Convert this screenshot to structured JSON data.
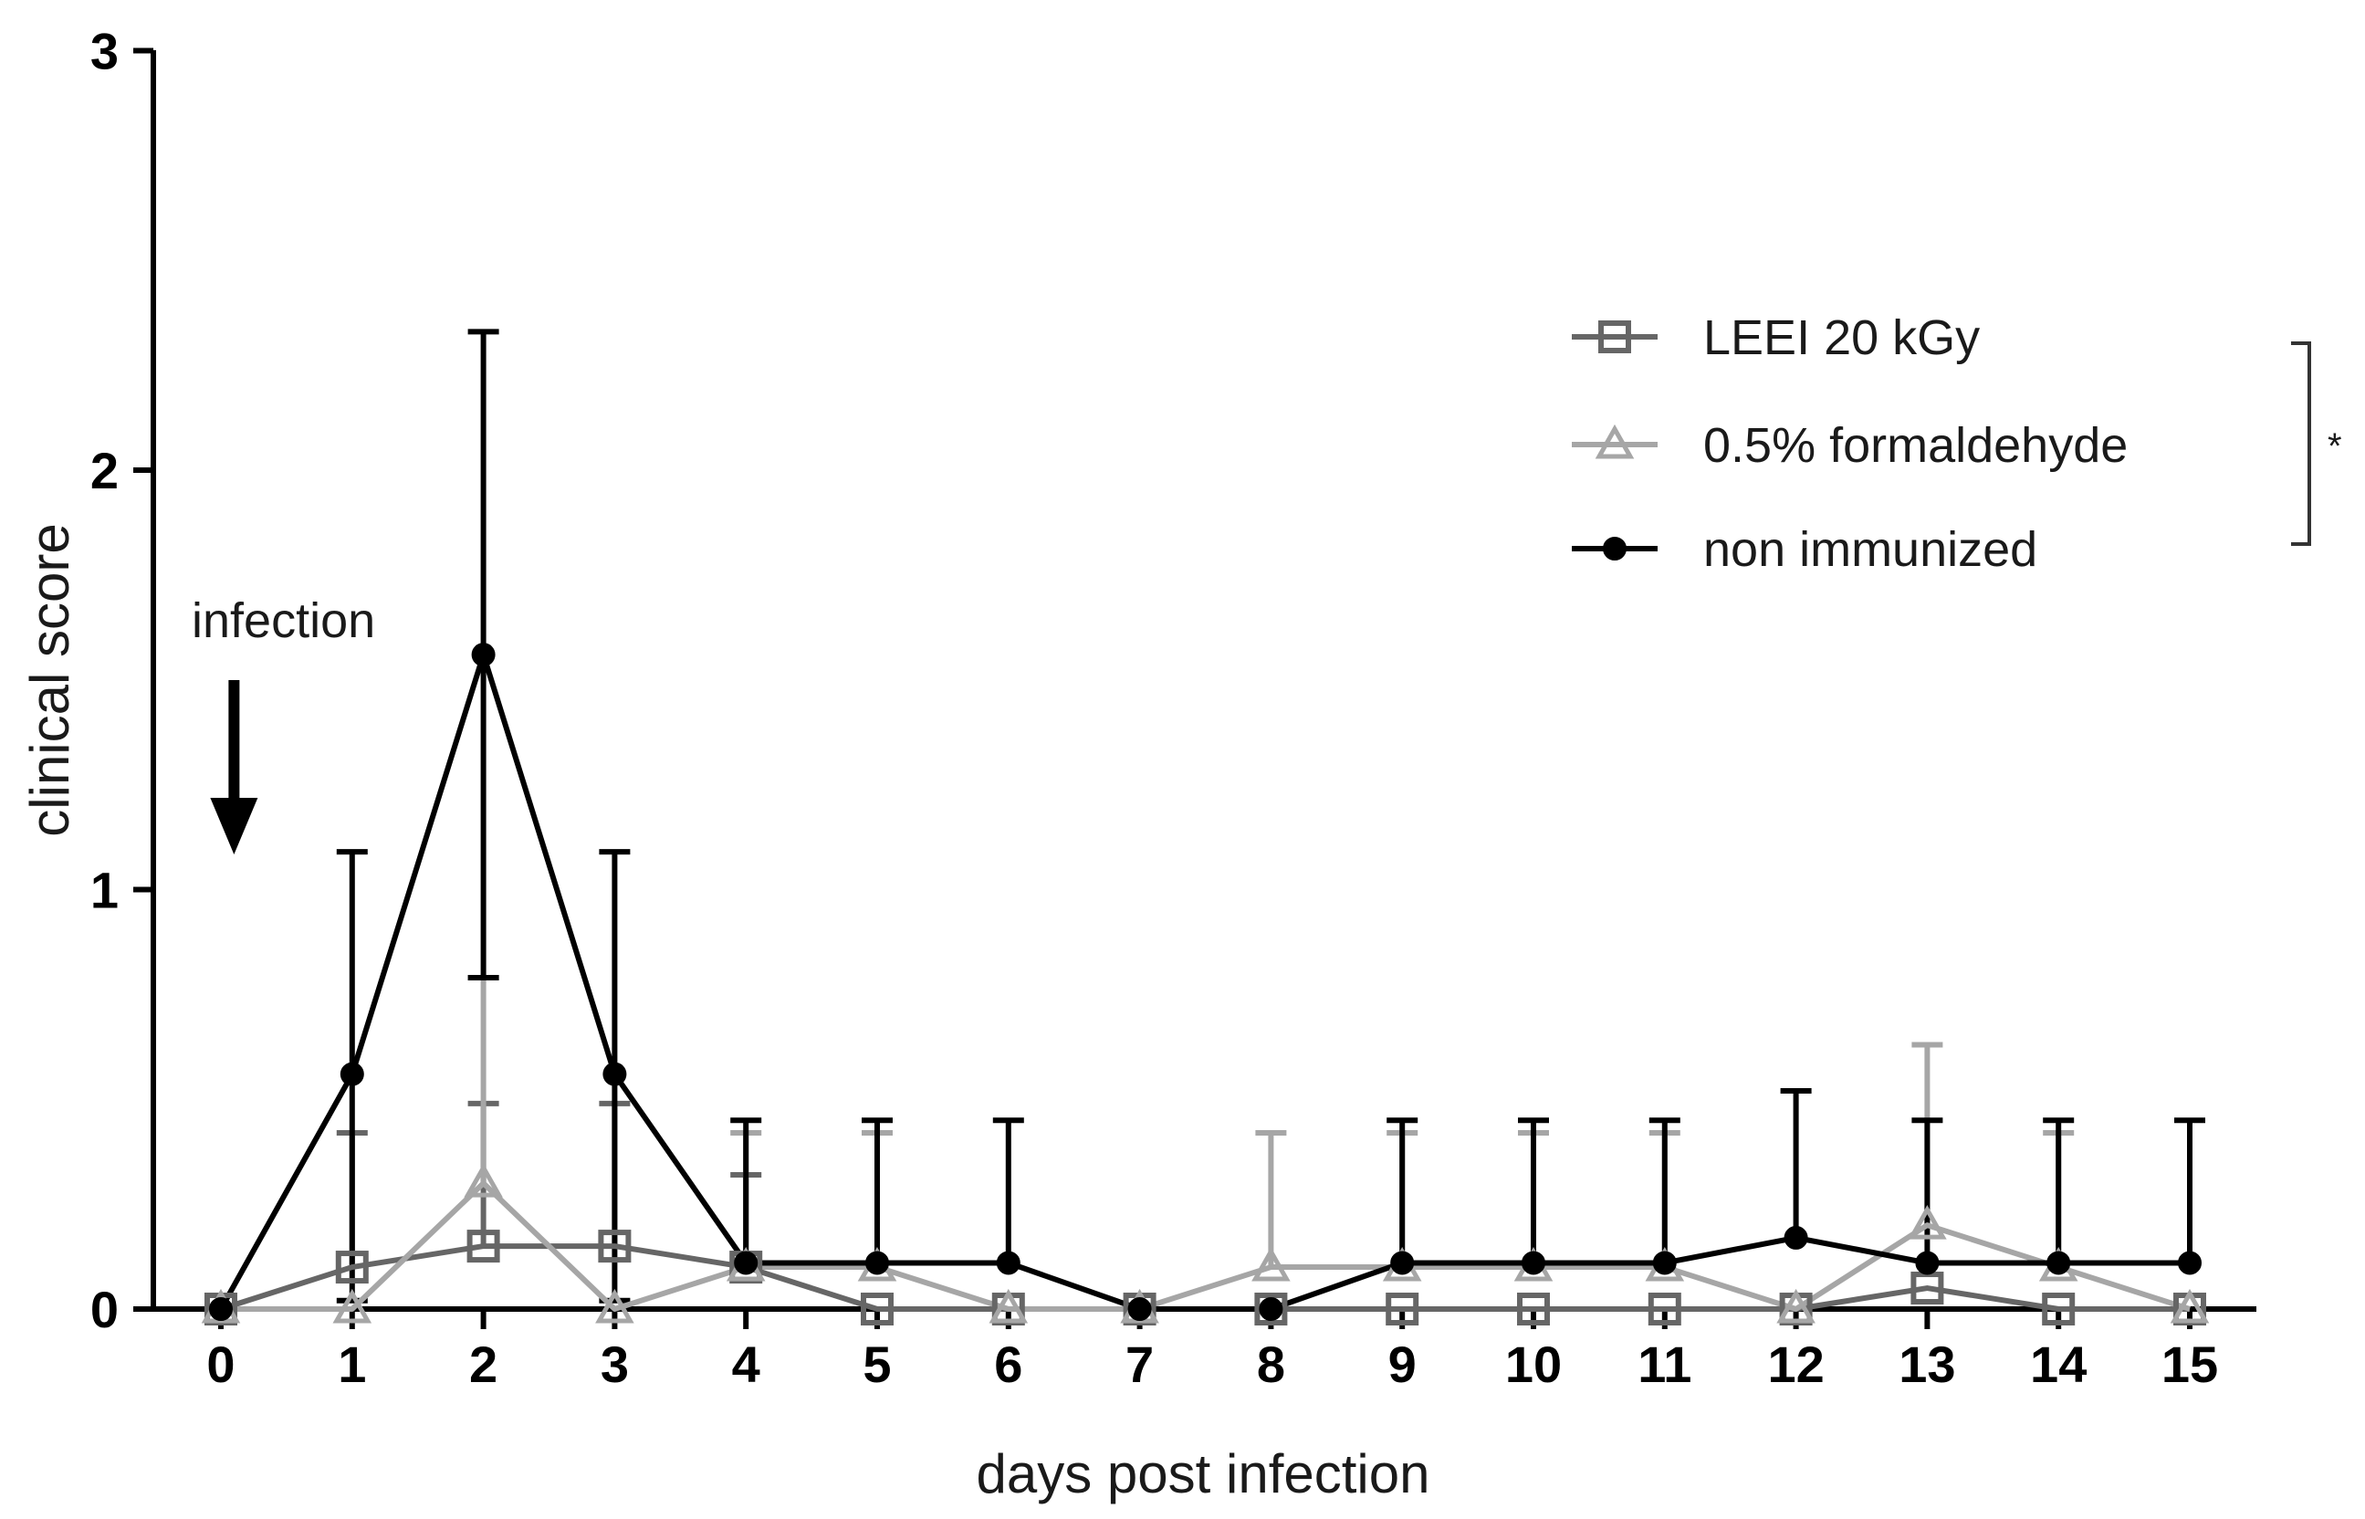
{
  "chart_data": {
    "type": "line",
    "xlabel": "days post infection",
    "ylabel": "clinical score",
    "xlim": [
      -0.4,
      15.5
    ],
    "ylim": [
      0,
      3
    ],
    "x_ticks": [
      0,
      1,
      2,
      3,
      4,
      5,
      6,
      7,
      8,
      9,
      10,
      11,
      12,
      13,
      14,
      15
    ],
    "y_ticks": [
      0,
      1,
      2,
      3
    ],
    "grid": false,
    "legend_position": "top-right",
    "series": [
      {
        "name": "LEEI 20 kGy",
        "color": "#666666",
        "marker": "square-open",
        "x": [
          0,
          1,
          2,
          3,
          4,
          5,
          6,
          7,
          8,
          9,
          10,
          11,
          12,
          13,
          14,
          15
        ],
        "values": [
          0,
          0.1,
          0.15,
          0.15,
          0.1,
          0,
          0,
          0,
          0,
          0,
          0,
          0,
          0,
          0.05,
          0,
          0
        ],
        "error_upper": [
          null,
          0.42,
          0.49,
          0.49,
          0.32,
          null,
          null,
          null,
          null,
          null,
          null,
          null,
          null,
          null,
          null,
          null
        ]
      },
      {
        "name": "0.5% formaldehyde",
        "color": "#a6a6a6",
        "marker": "triangle-open",
        "x": [
          0,
          1,
          2,
          3,
          4,
          5,
          6,
          7,
          8,
          9,
          10,
          11,
          12,
          13,
          14,
          15
        ],
        "values": [
          0,
          0,
          0.3,
          0,
          0.1,
          0.1,
          0,
          0,
          0.1,
          0.1,
          0.1,
          0.1,
          0,
          0.2,
          0.1,
          0
        ],
        "error_upper": [
          null,
          null,
          0.79,
          null,
          0.42,
          0.42,
          null,
          null,
          0.42,
          0.42,
          0.42,
          0.42,
          null,
          0.63,
          0.42,
          null
        ]
      },
      {
        "name": "non immunized",
        "color": "#000000",
        "marker": "circle-filled",
        "x": [
          0,
          1,
          2,
          3,
          4,
          5,
          6,
          7,
          8,
          9,
          10,
          11,
          12,
          13,
          14,
          15
        ],
        "values": [
          0,
          0.56,
          1.56,
          0.56,
          0.11,
          0.11,
          0.11,
          0,
          0,
          0.11,
          0.11,
          0.11,
          0.17,
          0.11,
          0.11,
          0.11
        ],
        "error_upper": [
          null,
          1.09,
          2.33,
          1.09,
          0.45,
          0.45,
          0.45,
          null,
          null,
          0.45,
          0.45,
          0.45,
          0.52,
          0.45,
          0.45,
          0.45
        ],
        "error_lower": [
          null,
          0.02,
          0.79,
          0.02,
          null,
          null,
          null,
          null,
          null,
          null,
          null,
          null,
          null,
          null,
          null,
          null
        ]
      }
    ],
    "annotations": {
      "infection_label": "infection",
      "infection_day": 0.1,
      "significance_marker": "*"
    }
  }
}
